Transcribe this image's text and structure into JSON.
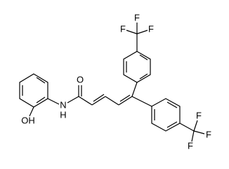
{
  "molecule": {
    "labels": {
      "oxygen": "O",
      "nitrogen": "N",
      "hydrogen": "H",
      "hydroxyl": "OH",
      "fluorines": [
        "F",
        "F",
        "F",
        "F",
        "F",
        "F"
      ]
    }
  }
}
